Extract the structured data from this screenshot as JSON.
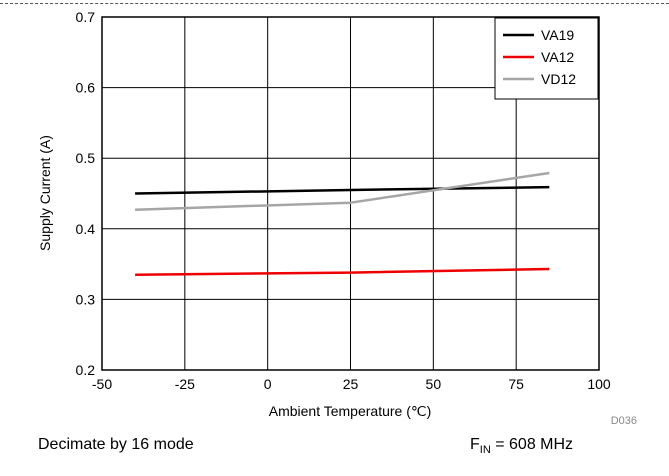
{
  "chart_data": {
    "type": "line",
    "xlabel": "Ambient Temperature (℃)",
    "ylabel": "Supply Current (A)",
    "xlim": [
      -50,
      100
    ],
    "ylim": [
      0.2,
      0.7
    ],
    "x_ticks": [
      "-50",
      "-25",
      "0",
      "25",
      "50",
      "75",
      "100"
    ],
    "y_ticks": [
      "0.2",
      "0.3",
      "0.4",
      "0.5",
      "0.6",
      "0.7"
    ],
    "grid": true,
    "legend_position": "top-right",
    "series": [
      {
        "name": "VA19",
        "color": "#000000",
        "x": [
          -40,
          25,
          85
        ],
        "values": [
          0.45,
          0.455,
          0.459
        ]
      },
      {
        "name": "VA12",
        "color": "#ee0000",
        "x": [
          -40,
          25,
          85
        ],
        "values": [
          0.335,
          0.338,
          0.343
        ]
      },
      {
        "name": "VD12",
        "color": "#a6a6a6",
        "x": [
          -40,
          25,
          85
        ],
        "values": [
          0.427,
          0.437,
          0.479
        ]
      }
    ],
    "code": "D036"
  },
  "captions": {
    "mode": "Decimate by 16 mode",
    "fin_label": "F",
    "fin_sub": "IN",
    "fin_value": " = 608 MHz"
  }
}
